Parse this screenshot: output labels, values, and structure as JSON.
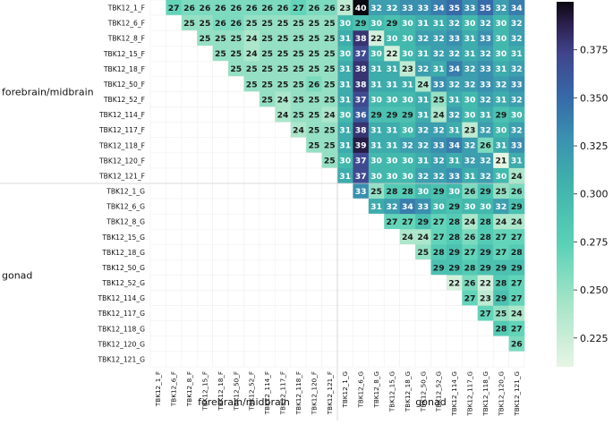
{
  "chart_data": {
    "type": "heatmap",
    "labels": [
      "TBK12_1_F",
      "TBK12_6_F",
      "TBK12_8_F",
      "TBK12_15_F",
      "TBK12_18_F",
      "TBK12_50_F",
      "TBK12_52_F",
      "TBK12_114_F",
      "TBK12_117_F",
      "TBK12_118_F",
      "TBK12_120_F",
      "TBK12_121_F",
      "TBK12_1_G",
      "TBK12_6_G",
      "TBK12_8_G",
      "TBK12_15_G",
      "TBK12_18_G",
      "TBK12_50_G",
      "TBK12_52_G",
      "TBK12_114_G",
      "TBK12_117_G",
      "TBK12_118_G",
      "TBK12_120_G",
      "TBK12_121_G"
    ],
    "groups": [
      {
        "name": "forebrain/midbrain",
        "start": 0,
        "end": 11
      },
      {
        "name": "gonad",
        "start": 12,
        "end": 23
      }
    ],
    "matrix": [
      [
        null,
        27,
        26,
        26,
        26,
        26,
        26,
        26,
        26,
        27,
        26,
        26,
        23,
        40,
        32,
        32,
        33,
        33,
        34,
        35,
        33,
        35,
        32,
        34
      ],
      [
        null,
        null,
        25,
        25,
        26,
        26,
        25,
        25,
        25,
        25,
        25,
        25,
        30,
        29,
        30,
        29,
        30,
        31,
        31,
        32,
        30,
        32,
        30,
        32
      ],
      [
        null,
        null,
        null,
        25,
        25,
        25,
        24,
        25,
        25,
        25,
        25,
        25,
        31,
        38,
        22,
        30,
        30,
        32,
        32,
        33,
        31,
        33,
        30,
        32
      ],
      [
        null,
        null,
        null,
        null,
        25,
        25,
        24,
        25,
        25,
        25,
        25,
        25,
        30,
        37,
        30,
        22,
        30,
        31,
        32,
        32,
        31,
        32,
        30,
        31
      ],
      [
        null,
        null,
        null,
        null,
        null,
        25,
        25,
        25,
        25,
        25,
        25,
        25,
        31,
        38,
        31,
        31,
        23,
        32,
        31,
        34,
        32,
        33,
        31,
        32
      ],
      [
        null,
        null,
        null,
        null,
        null,
        null,
        25,
        25,
        25,
        25,
        26,
        25,
        31,
        38,
        31,
        31,
        31,
        24,
        33,
        32,
        32,
        33,
        32,
        33
      ],
      [
        null,
        null,
        null,
        null,
        null,
        null,
        null,
        25,
        24,
        25,
        25,
        25,
        31,
        37,
        30,
        30,
        30,
        31,
        25,
        31,
        30,
        32,
        31,
        32
      ],
      [
        null,
        null,
        null,
        null,
        null,
        null,
        null,
        null,
        24,
        25,
        25,
        24,
        30,
        36,
        29,
        29,
        29,
        31,
        24,
        32,
        30,
        31,
        29,
        30
      ],
      [
        null,
        null,
        null,
        null,
        null,
        null,
        null,
        null,
        null,
        24,
        25,
        25,
        31,
        38,
        31,
        31,
        30,
        32,
        32,
        31,
        23,
        32,
        30,
        32
      ],
      [
        null,
        null,
        null,
        null,
        null,
        null,
        null,
        null,
        null,
        null,
        25,
        25,
        31,
        39,
        31,
        31,
        32,
        32,
        33,
        34,
        32,
        26,
        31,
        33
      ],
      [
        null,
        null,
        null,
        null,
        null,
        null,
        null,
        null,
        null,
        null,
        null,
        25,
        30,
        37,
        30,
        30,
        30,
        31,
        32,
        31,
        32,
        32,
        21,
        31
      ],
      [
        null,
        null,
        null,
        null,
        null,
        null,
        null,
        null,
        null,
        null,
        null,
        null,
        31,
        37,
        30,
        30,
        30,
        32,
        32,
        33,
        31,
        32,
        30,
        24
      ],
      [
        null,
        null,
        null,
        null,
        null,
        null,
        null,
        null,
        null,
        null,
        null,
        null,
        null,
        33,
        25,
        28,
        28,
        30,
        29,
        30,
        26,
        29,
        25,
        26
      ],
      [
        null,
        null,
        null,
        null,
        null,
        null,
        null,
        null,
        null,
        null,
        null,
        null,
        null,
        null,
        31,
        32,
        34,
        33,
        30,
        29,
        30,
        30,
        32,
        29
      ],
      [
        null,
        null,
        null,
        null,
        null,
        null,
        null,
        null,
        null,
        null,
        null,
        null,
        null,
        null,
        null,
        27,
        27,
        29,
        27,
        28,
        24,
        28,
        24,
        24
      ],
      [
        null,
        null,
        null,
        null,
        null,
        null,
        null,
        null,
        null,
        null,
        null,
        null,
        null,
        null,
        null,
        null,
        24,
        24,
        27,
        28,
        26,
        28,
        27,
        27
      ],
      [
        null,
        null,
        null,
        null,
        null,
        null,
        null,
        null,
        null,
        null,
        null,
        null,
        null,
        null,
        null,
        null,
        null,
        25,
        28,
        29,
        27,
        29,
        27,
        28
      ],
      [
        null,
        null,
        null,
        null,
        null,
        null,
        null,
        null,
        null,
        null,
        null,
        null,
        null,
        null,
        null,
        null,
        null,
        null,
        29,
        29,
        28,
        29,
        29,
        29
      ],
      [
        null,
        null,
        null,
        null,
        null,
        null,
        null,
        null,
        null,
        null,
        null,
        null,
        null,
        null,
        null,
        null,
        null,
        null,
        null,
        22,
        26,
        22,
        28,
        27
      ],
      [
        null,
        null,
        null,
        null,
        null,
        null,
        null,
        null,
        null,
        null,
        null,
        null,
        null,
        null,
        null,
        null,
        null,
        null,
        null,
        null,
        27,
        23,
        29,
        27
      ],
      [
        null,
        null,
        null,
        null,
        null,
        null,
        null,
        null,
        null,
        null,
        null,
        null,
        null,
        null,
        null,
        null,
        null,
        null,
        null,
        null,
        null,
        27,
        25,
        24
      ],
      [
        null,
        null,
        null,
        null,
        null,
        null,
        null,
        null,
        null,
        null,
        null,
        null,
        null,
        null,
        null,
        null,
        null,
        null,
        null,
        null,
        null,
        null,
        28,
        27
      ],
      [
        null,
        null,
        null,
        null,
        null,
        null,
        null,
        null,
        null,
        null,
        null,
        null,
        null,
        null,
        null,
        null,
        null,
        null,
        null,
        null,
        null,
        null,
        null,
        26
      ],
      [
        null,
        null,
        null,
        null,
        null,
        null,
        null,
        null,
        null,
        null,
        null,
        null,
        null,
        null,
        null,
        null,
        null,
        null,
        null,
        null,
        null,
        null,
        null,
        null
      ]
    ],
    "value_scale": 0.01,
    "colorbar": {
      "min": 0.21,
      "max": 0.4,
      "ticks": [
        "0.225",
        "0.250",
        "0.275",
        "0.300",
        "0.325",
        "0.350",
        "0.375"
      ],
      "tick_values": [
        0.225,
        0.25,
        0.275,
        0.3,
        0.325,
        0.35,
        0.375
      ]
    },
    "colors": {
      "low": "#e6f5e4",
      "mid_low": "#5cd2b8",
      "mid": "#3a93b0",
      "mid_high": "#40448c",
      "high": "#0b0810",
      "grid": "#f0f0f0"
    }
  }
}
